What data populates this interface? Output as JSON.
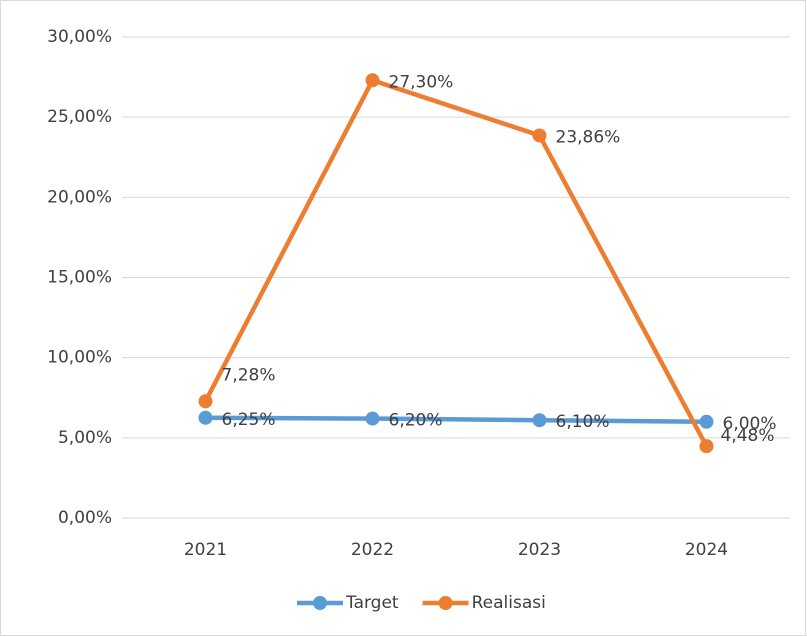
{
  "chart_data": {
    "type": "line",
    "categories": [
      "2021",
      "2022",
      "2023",
      "2024"
    ],
    "series": [
      {
        "name": "Target",
        "color": "#5b9bd5",
        "values": [
          6.25,
          6.2,
          6.1,
          6.0
        ],
        "value_labels": [
          "6,25%",
          "6,20%",
          "6,10%",
          "6,00%"
        ]
      },
      {
        "name": "Realisasi",
        "color": "#ed7d31",
        "values": [
          7.28,
          27.3,
          23.86,
          4.48
        ],
        "value_labels": [
          "7,28%",
          "27,30%",
          "23,86%",
          "4,48%"
        ]
      }
    ],
    "ylim": [
      0,
      30
    ],
    "yticks": [
      {
        "value": 0,
        "label": "0,00%"
      },
      {
        "value": 5,
        "label": "5,00%"
      },
      {
        "value": 10,
        "label": "10,00%"
      },
      {
        "value": 15,
        "label": "15,00%"
      },
      {
        "value": 20,
        "label": "20,00%"
      },
      {
        "value": 25,
        "label": "25,00%"
      },
      {
        "value": 30,
        "label": "30,00%"
      }
    ],
    "grid": true,
    "legend": "bottom"
  }
}
